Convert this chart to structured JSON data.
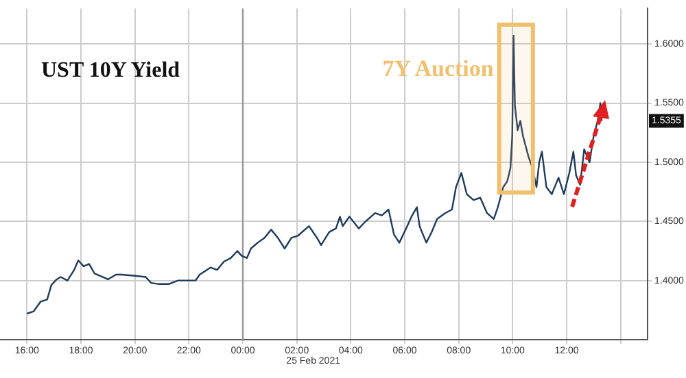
{
  "chart_data": {
    "type": "line",
    "title": "UST 10Y Yield",
    "x": [
      "2021-02-24T16:00",
      "2021-02-24T16:15",
      "2021-02-24T16:30",
      "2021-02-24T16:45",
      "2021-02-24T16:54",
      "2021-02-24T17:06",
      "2021-02-24T17:15",
      "2021-02-24T17:30",
      "2021-02-24T17:45",
      "2021-02-24T17:54",
      "2021-02-24T18:06",
      "2021-02-24T18:18",
      "2021-02-24T18:30",
      "2021-02-24T18:48",
      "2021-02-24T19:00",
      "2021-02-24T19:18",
      "2021-02-24T19:30",
      "2021-02-24T20:00",
      "2021-02-24T20:24",
      "2021-02-24T20:36",
      "2021-02-24T20:54",
      "2021-02-24T21:15",
      "2021-02-24T21:36",
      "2021-02-24T21:54",
      "2021-02-24T22:15",
      "2021-02-24T22:24",
      "2021-02-24T22:48",
      "2021-02-24T23:03",
      "2021-02-24T23:18",
      "2021-02-24T23:33",
      "2021-02-24T23:48",
      "2021-02-24T23:57",
      "2021-02-25T00:09",
      "2021-02-25T00:18",
      "2021-02-25T00:33",
      "2021-02-25T00:48",
      "2021-02-25T01:03",
      "2021-02-25T01:18",
      "2021-02-25T01:33",
      "2021-02-25T01:48",
      "2021-02-25T02:03",
      "2021-02-25T02:27",
      "2021-02-25T02:45",
      "2021-02-25T02:54",
      "2021-02-25T03:12",
      "2021-02-25T03:27",
      "2021-02-25T03:36",
      "2021-02-25T03:42",
      "2021-02-25T03:57",
      "2021-02-25T04:18",
      "2021-02-25T04:33",
      "2021-02-25T04:54",
      "2021-02-25T05:09",
      "2021-02-25T05:24",
      "2021-02-25T05:36",
      "2021-02-25T05:48",
      "2021-02-25T06:03",
      "2021-02-25T06:15",
      "2021-02-25T06:27",
      "2021-02-25T06:33",
      "2021-02-25T06:48",
      "2021-02-25T07:00",
      "2021-02-25T07:12",
      "2021-02-25T07:30",
      "2021-02-25T07:45",
      "2021-02-25T07:54",
      "2021-02-25T08:06",
      "2021-02-25T08:18",
      "2021-02-25T08:33",
      "2021-02-25T08:48",
      "2021-02-25T09:03",
      "2021-02-25T09:18",
      "2021-02-25T09:27",
      "2021-02-25T09:39",
      "2021-02-25T09:48",
      "2021-02-25T09:55",
      "2021-02-25T09:59",
      "2021-02-25T10:02",
      "2021-02-25T10:05",
      "2021-02-25T10:11",
      "2021-02-25T10:17",
      "2021-02-25T10:23",
      "2021-02-25T10:35",
      "2021-02-25T10:44",
      "2021-02-25T10:53",
      "2021-02-25T10:59",
      "2021-02-25T11:05",
      "2021-02-25T11:15",
      "2021-02-25T11:27",
      "2021-02-25T11:42",
      "2021-02-25T11:54",
      "2021-02-25T12:06",
      "2021-02-25T12:15",
      "2021-02-25T12:21",
      "2021-02-25T12:30",
      "2021-02-25T12:39",
      "2021-02-25T12:51",
      "2021-02-25T13:00",
      "2021-02-25T13:09",
      "2021-02-25T13:15",
      "2021-02-25T13:18"
    ],
    "values": [
      1.372,
      1.374,
      1.382,
      1.384,
      1.396,
      1.401,
      1.403,
      1.4,
      1.409,
      1.417,
      1.412,
      1.414,
      1.406,
      1.403,
      1.401,
      1.405,
      1.405,
      1.404,
      1.403,
      1.398,
      1.397,
      1.397,
      1.4,
      1.4,
      1.4,
      1.405,
      1.411,
      1.409,
      1.416,
      1.419,
      1.425,
      1.421,
      1.419,
      1.427,
      1.432,
      1.436,
      1.443,
      1.436,
      1.427,
      1.436,
      1.438,
      1.446,
      1.436,
      1.43,
      1.441,
      1.444,
      1.454,
      1.446,
      1.454,
      1.444,
      1.45,
      1.457,
      1.455,
      1.46,
      1.439,
      1.432,
      1.444,
      1.454,
      1.462,
      1.446,
      1.432,
      1.441,
      1.452,
      1.457,
      1.46,
      1.479,
      1.491,
      1.473,
      1.468,
      1.47,
      1.457,
      1.452,
      1.462,
      1.479,
      1.484,
      1.495,
      1.522,
      1.607,
      1.548,
      1.527,
      1.535,
      1.522,
      1.505,
      1.495,
      1.479,
      1.5,
      1.509,
      1.479,
      1.473,
      1.487,
      1.473,
      1.491,
      1.509,
      1.489,
      1.481,
      1.511,
      1.5,
      1.522,
      1.535,
      1.55,
      1.535
    ],
    "color": "#1f3a5a",
    "xlim": [
      "2021-02-24T15:00",
      "2021-02-25T15:00"
    ],
    "xticks": [
      {
        "value": "2021-02-24T16:00",
        "label": "16:00"
      },
      {
        "value": "2021-02-24T18:00",
        "label": "18:00"
      },
      {
        "value": "2021-02-24T20:00",
        "label": "20:00"
      },
      {
        "value": "2021-02-24T22:00",
        "label": "22:00"
      },
      {
        "value": "2021-02-25T00:00",
        "label": "00:00"
      },
      {
        "value": "2021-02-25T02:00",
        "label": "02:00"
      },
      {
        "value": "2021-02-25T04:00",
        "label": "04:00"
      },
      {
        "value": "2021-02-25T06:00",
        "label": "06:00"
      },
      {
        "value": "2021-02-25T08:00",
        "label": "08:00"
      },
      {
        "value": "2021-02-25T10:00",
        "label": "10:00"
      },
      {
        "value": "2021-02-25T12:00",
        "label": "12:00"
      },
      {
        "value": "2021-02-25T14:00",
        "label": null
      }
    ],
    "ylim": [
      1.35,
      1.63
    ],
    "yticks": [
      {
        "value": 1.4,
        "label": "1.4000"
      },
      {
        "value": 1.45,
        "label": "1.4500"
      },
      {
        "value": 1.5,
        "label": "1.5000"
      },
      {
        "value": 1.55,
        "label": "1.5500"
      },
      {
        "value": 1.6,
        "label": "1.6000"
      }
    ],
    "grid": true,
    "ref_lines": [
      {
        "axis": "x",
        "value": "2021-02-25T00:00",
        "color": "#999999"
      }
    ],
    "bands": [
      {
        "axis": "x",
        "from": "2021-02-25T09:30",
        "to": "2021-02-25T10:45",
        "label": "7Y Auction",
        "color": "#f0c070"
      }
    ],
    "annotations": [
      "25 Feb 2021",
      "1.5355"
    ]
  }
}
